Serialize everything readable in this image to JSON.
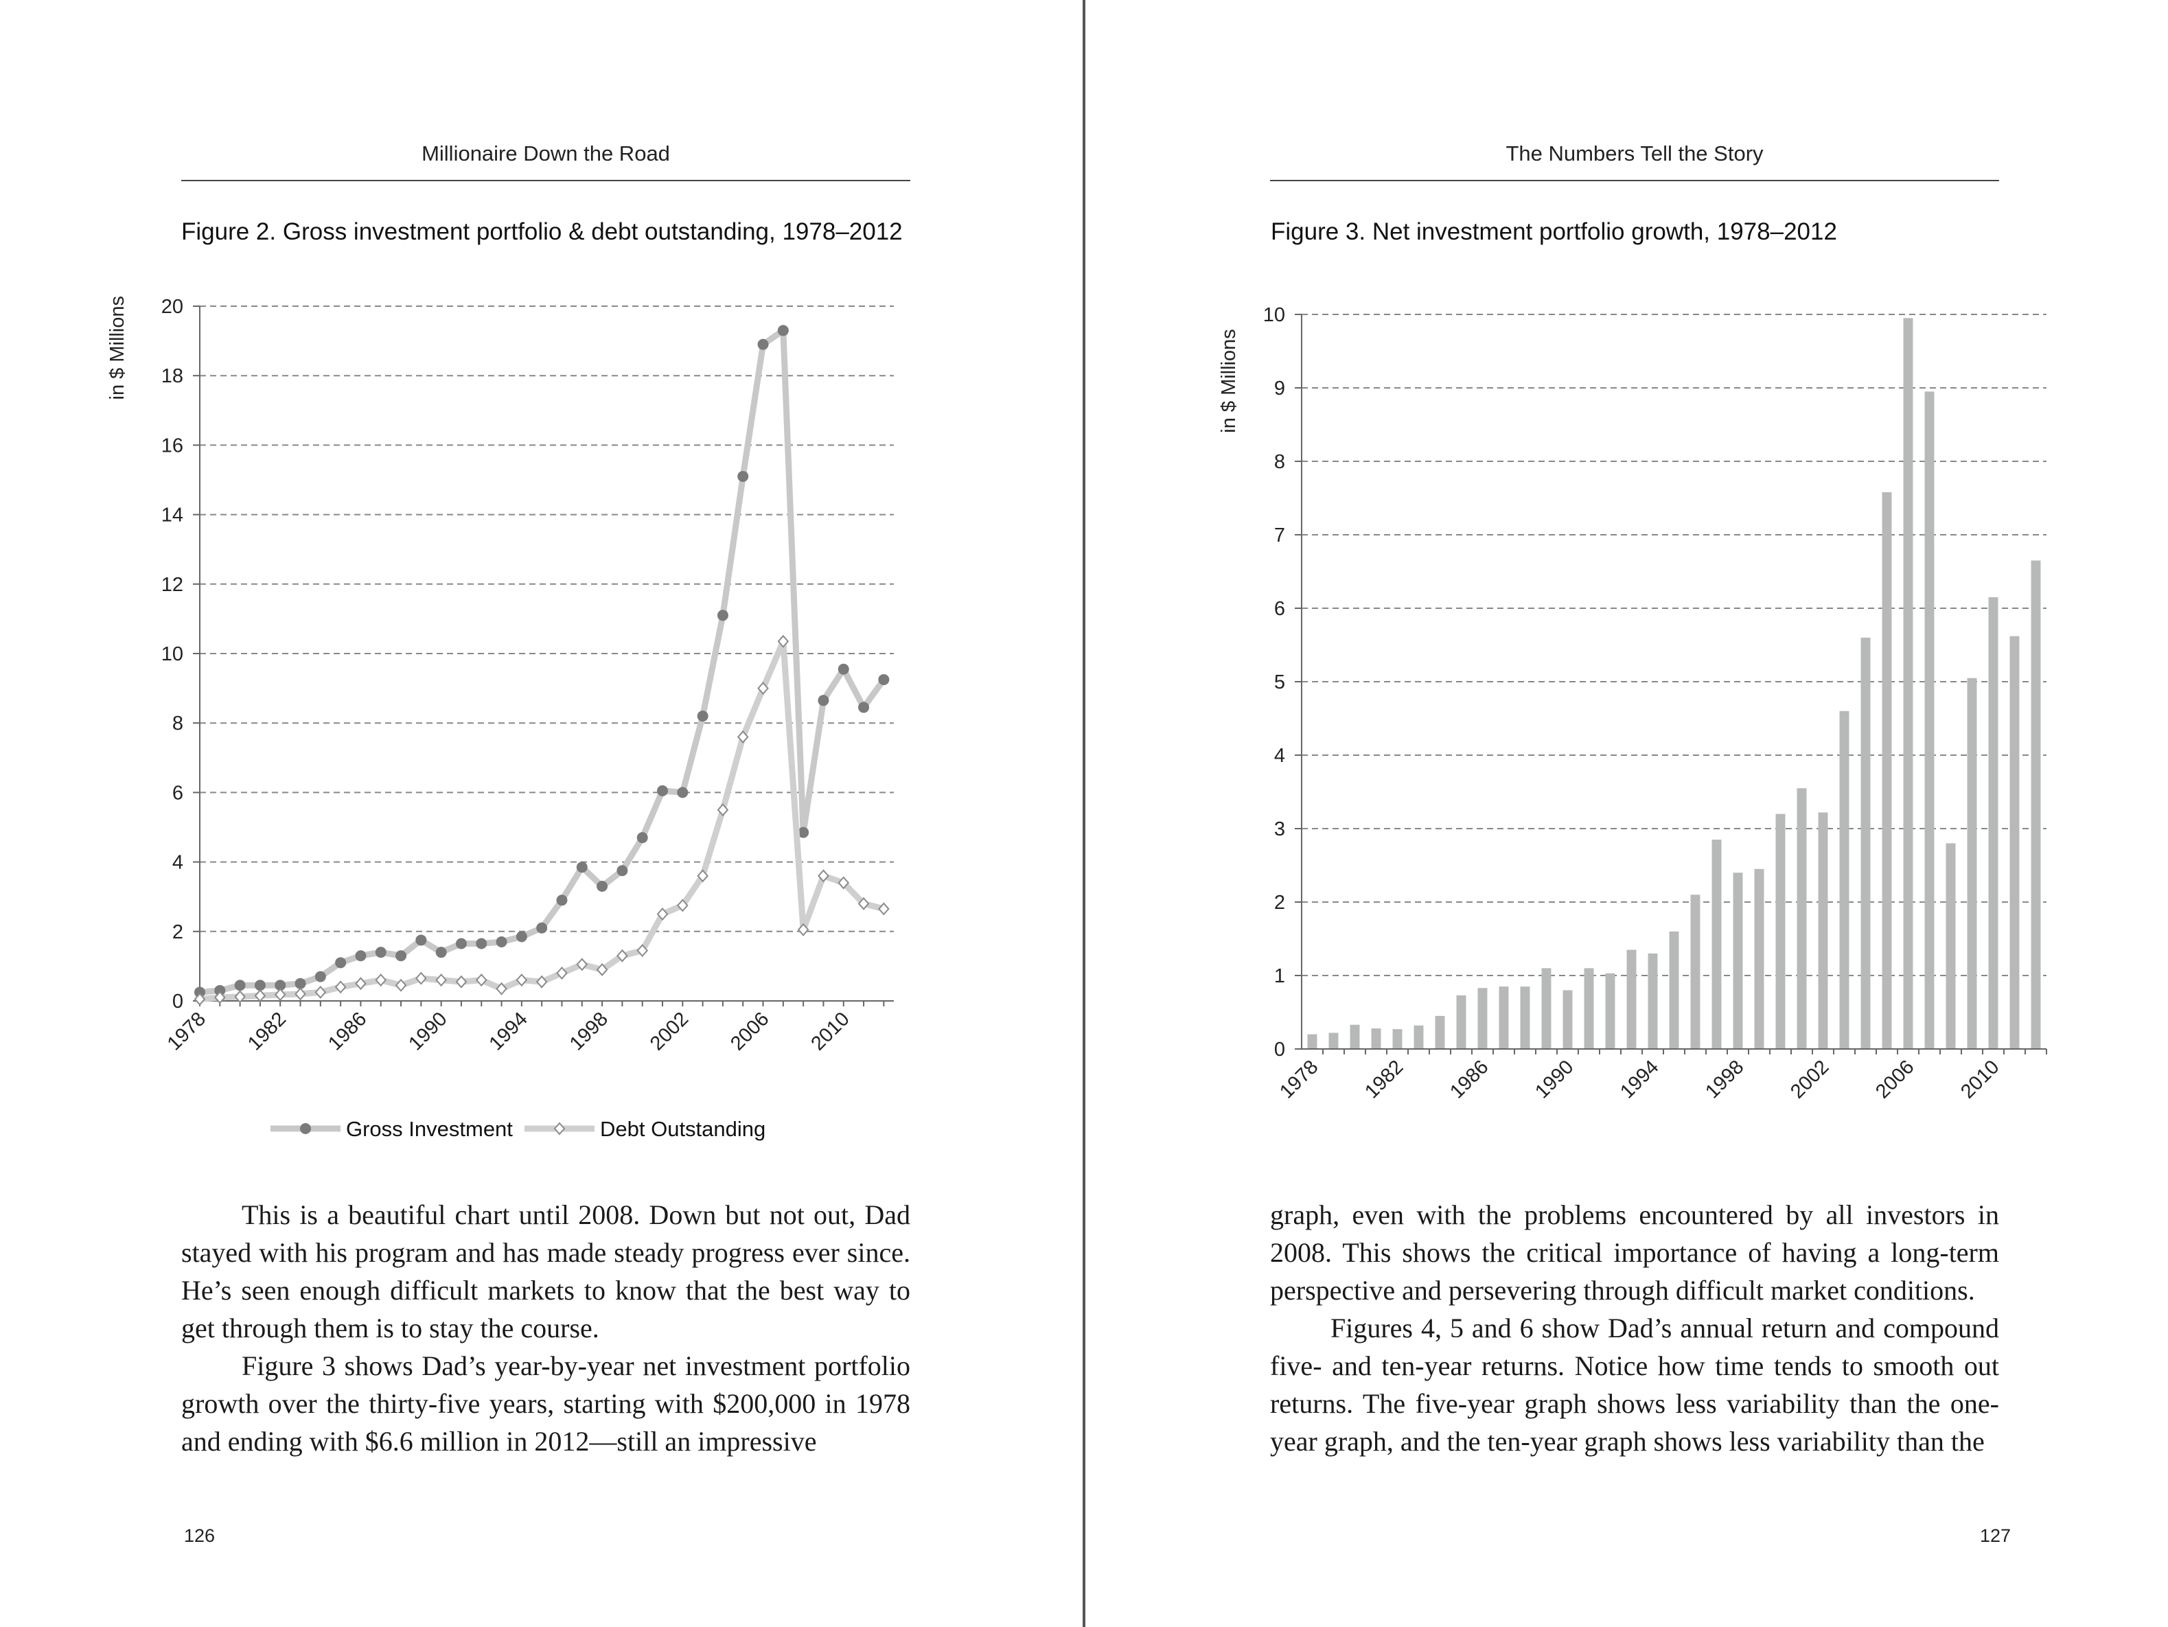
{
  "left_page": {
    "running_head": "Millionaire Down the Road",
    "figure_caption": "Figure 2. Gross investment portfolio & debt outstanding, 1978–2012",
    "paragraphs": [
      "This is a beautiful chart until 2008. Down but not out, Dad stayed with his program and has made steady progress ever since. He’s seen enough difficult markets to know that the best way to get through them is to stay the course.",
      "Figure 3 shows Dad’s year-by-year net investment portfolio growth over the thirty-five years, starting with $200,000 in 1978 and ending with $6.6 million in 2012—still an impressive"
    ],
    "page_number": "126"
  },
  "right_page": {
    "running_head": "The Numbers Tell the Story",
    "figure_caption": "Figure 3. Net investment portfolio growth, 1978–2012",
    "paragraphs": [
      "graph, even with the problems encountered by all investors in 2008. This shows the critical importance of having a long-term perspective and persevering through difficult market conditions.",
      "Figures 4, 5 and 6 show Dad’s annual return and compound five- and ten-year returns. Notice how time tends to smooth out returns. The five-year graph shows less variability than the one-year graph, and the ten-year graph shows less variability than the"
    ],
    "page_number": "127"
  },
  "colors": {
    "gross_line": "#c8c8c8",
    "gross_marker": "#7a7a7a",
    "debt_line": "#cfcfcf",
    "debt_marker": "#8a8a8a",
    "bar": "#b7b9b8",
    "grid": "#888888"
  },
  "chart_data": [
    {
      "type": "line",
      "ylabel": "in $ Millions",
      "ylim": [
        0,
        20
      ],
      "yticks": [
        0,
        2,
        4,
        6,
        8,
        10,
        12,
        14,
        16,
        18,
        20
      ],
      "xtick_labels": [
        "1978",
        "1982",
        "1986",
        "1990",
        "1994",
        "1998",
        "2002",
        "2006",
        "2010"
      ],
      "grid": "horizontal dashed",
      "legend_position": "bottom",
      "x": [
        1978,
        1979,
        1980,
        1981,
        1982,
        1983,
        1984,
        1985,
        1986,
        1987,
        1988,
        1989,
        1990,
        1991,
        1992,
        1993,
        1994,
        1995,
        1996,
        1997,
        1998,
        1999,
        2000,
        2001,
        2002,
        2003,
        2004,
        2005,
        2006,
        2007,
        2008,
        2009,
        2010,
        2011,
        2012
      ],
      "series": [
        {
          "name": "Gross Investment",
          "marker": "filled circle",
          "values": [
            0.25,
            0.3,
            0.45,
            0.45,
            0.45,
            0.5,
            0.7,
            1.1,
            1.3,
            1.4,
            1.3,
            1.75,
            1.4,
            1.65,
            1.65,
            1.7,
            1.85,
            2.1,
            2.9,
            3.85,
            3.3,
            3.75,
            4.7,
            6.05,
            6.0,
            8.2,
            11.1,
            15.1,
            18.9,
            19.3,
            4.85,
            8.65,
            9.55,
            8.45,
            9.25
          ]
        },
        {
          "name": "Debt Outstanding",
          "marker": "open diamond",
          "values": [
            0.05,
            0.1,
            0.12,
            0.15,
            0.18,
            0.2,
            0.25,
            0.4,
            0.5,
            0.6,
            0.45,
            0.65,
            0.6,
            0.55,
            0.6,
            0.35,
            0.6,
            0.55,
            0.8,
            1.05,
            0.9,
            1.3,
            1.45,
            2.5,
            2.75,
            3.6,
            5.5,
            7.6,
            9.0,
            10.35,
            2.05,
            3.6,
            3.4,
            2.8,
            2.65
          ]
        }
      ]
    },
    {
      "type": "bar",
      "ylabel": "in $ Millions",
      "ylim": [
        0,
        10
      ],
      "yticks": [
        0,
        1,
        2,
        3,
        4,
        5,
        6,
        7,
        8,
        9,
        10
      ],
      "xtick_labels": [
        "1978",
        "1982",
        "1986",
        "1990",
        "1994",
        "1998",
        "2002",
        "2006",
        "2010"
      ],
      "grid": "horizontal dashed",
      "categories": [
        1978,
        1979,
        1980,
        1981,
        1982,
        1983,
        1984,
        1985,
        1986,
        1987,
        1988,
        1989,
        1990,
        1991,
        1992,
        1993,
        1994,
        1995,
        1996,
        1997,
        1998,
        1999,
        2000,
        2001,
        2002,
        2003,
        2004,
        2005,
        2006,
        2007,
        2008,
        2009,
        2010,
        2011,
        2012
      ],
      "values": [
        0.2,
        0.22,
        0.33,
        0.28,
        0.27,
        0.32,
        0.45,
        0.73,
        0.83,
        0.85,
        0.85,
        1.1,
        0.8,
        1.1,
        1.03,
        1.35,
        1.3,
        1.6,
        2.1,
        2.85,
        2.4,
        2.45,
        3.2,
        3.55,
        3.22,
        4.6,
        5.6,
        7.58,
        9.95,
        8.95,
        2.8,
        5.05,
        6.15,
        5.62,
        6.65
      ]
    }
  ]
}
